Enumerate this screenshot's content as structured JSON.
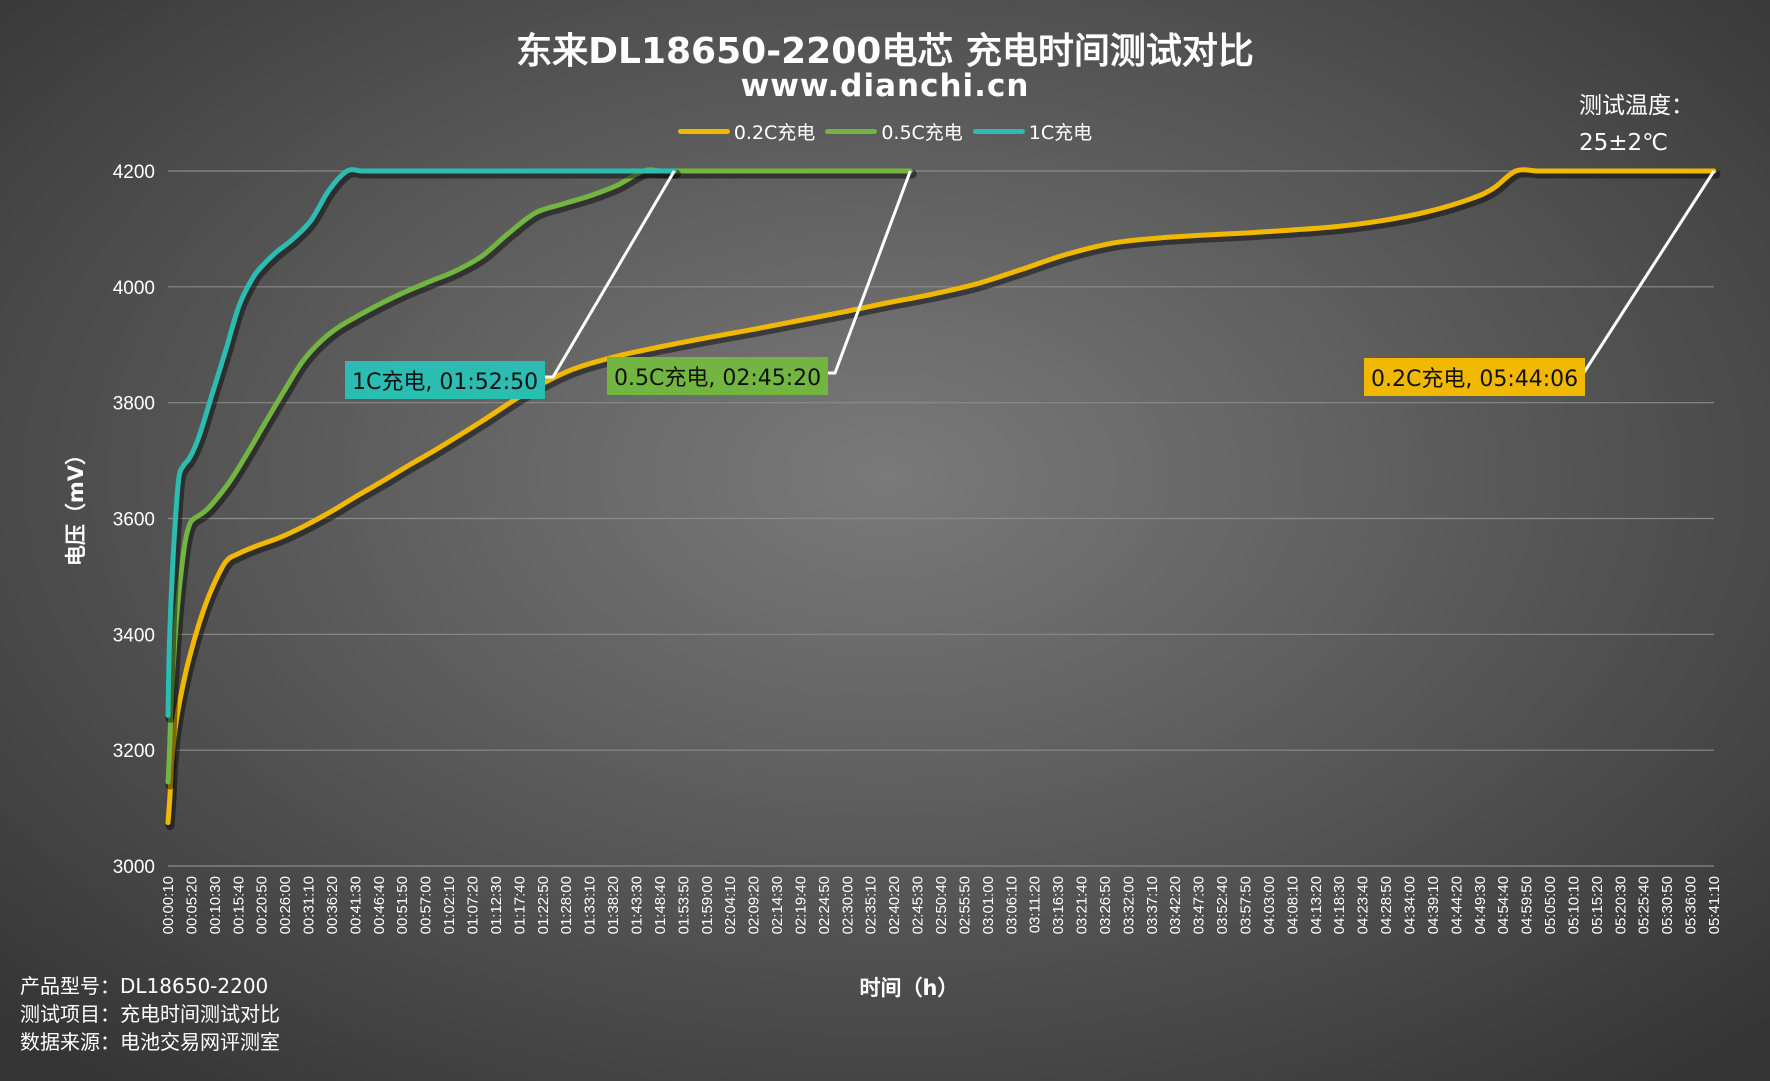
{
  "title": "东来DL18650-2200电芯 充电时间测试对比",
  "subtitle": "www.dianchi.cn",
  "test_temp": {
    "label": "测试温度：",
    "value": "25±2℃"
  },
  "footer": {
    "model": "产品型号：DL18650-2200",
    "item": "测试项目：充电时间测试对比",
    "source": "数据来源：电池交易网评测室"
  },
  "colors": {
    "c02": "#f0b800",
    "c05": "#72b540",
    "c1": "#2bbcb2",
    "annotation_line": "#ffffff"
  },
  "chart_data": {
    "type": "line",
    "xlabel": "时间（h）",
    "ylabel": "电压（mV）",
    "ylim": [
      3000,
      4200
    ],
    "y_ticks": [
      3000,
      3200,
      3400,
      3600,
      3800,
      4000,
      4200
    ],
    "x_range_minutes": [
      0.1667,
      344.1
    ],
    "x_tick_labels": [
      "00:00:10",
      "00:05:20",
      "00:10:30",
      "00:15:40",
      "00:20:50",
      "00:26:00",
      "00:31:10",
      "00:36:20",
      "00:41:30",
      "00:46:40",
      "00:51:50",
      "00:57:00",
      "01:02:10",
      "01:07:20",
      "01:12:30",
      "01:17:40",
      "01:22:50",
      "01:28:00",
      "01:33:10",
      "01:38:20",
      "01:43:30",
      "01:48:40",
      "01:53:50",
      "01:59:00",
      "02:04:10",
      "02:09:20",
      "02:14:30",
      "02:19:40",
      "02:24:50",
      "02:30:00",
      "02:35:10",
      "02:40:20",
      "02:45:30",
      "02:50:40",
      "02:55:50",
      "03:01:00",
      "03:06:10",
      "03:11:20",
      "03:16:30",
      "03:21:40",
      "03:26:50",
      "03:32:00",
      "03:37:10",
      "03:42:20",
      "03:47:30",
      "03:52:40",
      "03:57:50",
      "04:03:00",
      "04:08:10",
      "04:13:20",
      "04:18:30",
      "04:23:40",
      "04:28:50",
      "04:34:00",
      "04:39:10",
      "04:44:20",
      "04:49:30",
      "04:54:40",
      "04:59:50",
      "05:05:00",
      "05:10:10",
      "05:15:20",
      "05:20:30",
      "05:25:40",
      "05:30:50",
      "05:36:00",
      "05:41:10"
    ],
    "grid": true,
    "legend_position": "top-center",
    "series": [
      {
        "name": "0.2C充电",
        "color": "#f0b800",
        "x_minutes": [
          0.17,
          0.6,
          1,
          2,
          4,
          6,
          8,
          10,
          13,
          16,
          20,
          25,
          30,
          36,
          42,
          48,
          54,
          60,
          70,
          80,
          90,
          100,
          110,
          120,
          130,
          140,
          150,
          160,
          170,
          180,
          190,
          200,
          210,
          220,
          230,
          240,
          250,
          260,
          270,
          280,
          290,
          295,
          300,
          305,
          310,
          320,
          330,
          340,
          344.1
        ],
        "y": [
          3075,
          3120,
          3180,
          3250,
          3330,
          3390,
          3440,
          3480,
          3525,
          3540,
          3553,
          3567,
          3585,
          3610,
          3638,
          3665,
          3693,
          3720,
          3768,
          3818,
          3857,
          3880,
          3897,
          3912,
          3926,
          3941,
          3956,
          3972,
          3987,
          4005,
          4030,
          4056,
          4075,
          4084,
          4089,
          4093,
          4098,
          4104,
          4114,
          4129,
          4152,
          4170,
          4200,
          4200,
          4200,
          4200,
          4200,
          4200,
          4200
        ]
      },
      {
        "name": "0.5C充电",
        "color": "#72b540",
        "x_minutes": [
          0.17,
          0.5,
          1,
          2,
          3,
          4,
          5,
          6,
          8,
          10,
          14,
          18,
          22,
          26,
          30,
          34,
          38,
          42,
          46,
          52,
          58,
          64,
          70,
          76,
          82,
          88,
          94,
          100,
          106,
          110,
          115,
          130,
          145,
          160,
          165.3
        ],
        "y": [
          3145,
          3200,
          3300,
          3420,
          3500,
          3560,
          3590,
          3600,
          3610,
          3625,
          3665,
          3715,
          3768,
          3820,
          3870,
          3905,
          3930,
          3948,
          3965,
          3988,
          4008,
          4027,
          4053,
          4093,
          4128,
          4143,
          4157,
          4175,
          4200,
          4200,
          4200,
          4200,
          4200,
          4200,
          4200
        ]
      },
      {
        "name": "1C充电",
        "color": "#2bbcb2",
        "x_minutes": [
          0.17,
          0.4,
          0.8,
          1.5,
          2.5,
          3.5,
          5,
          7,
          10,
          13,
          16,
          19,
          21,
          24,
          28,
          32,
          36,
          40,
          43,
          45,
          50,
          60,
          70,
          80,
          90,
          100,
          112.8
        ],
        "y": [
          3260,
          3360,
          3450,
          3560,
          3665,
          3690,
          3705,
          3740,
          3815,
          3890,
          3968,
          4015,
          4035,
          4058,
          4083,
          4115,
          4167,
          4200,
          4200,
          4200,
          4200,
          4200,
          4200,
          4200,
          4200,
          4200,
          4200
        ]
      }
    ],
    "annotations": [
      {
        "label": "1C充电, 01:52:50",
        "series": "1C充电",
        "end_minutes": 112.8,
        "color": "#2bbcb2"
      },
      {
        "label": "0.5C充电, 02:45:20",
        "series": "0.5C充电",
        "end_minutes": 165.3,
        "color": "#72b540"
      },
      {
        "label": "0.2C充电, 05:44:06",
        "series": "0.2C充电",
        "end_minutes": 344.1,
        "color": "#f0b800"
      }
    ]
  }
}
